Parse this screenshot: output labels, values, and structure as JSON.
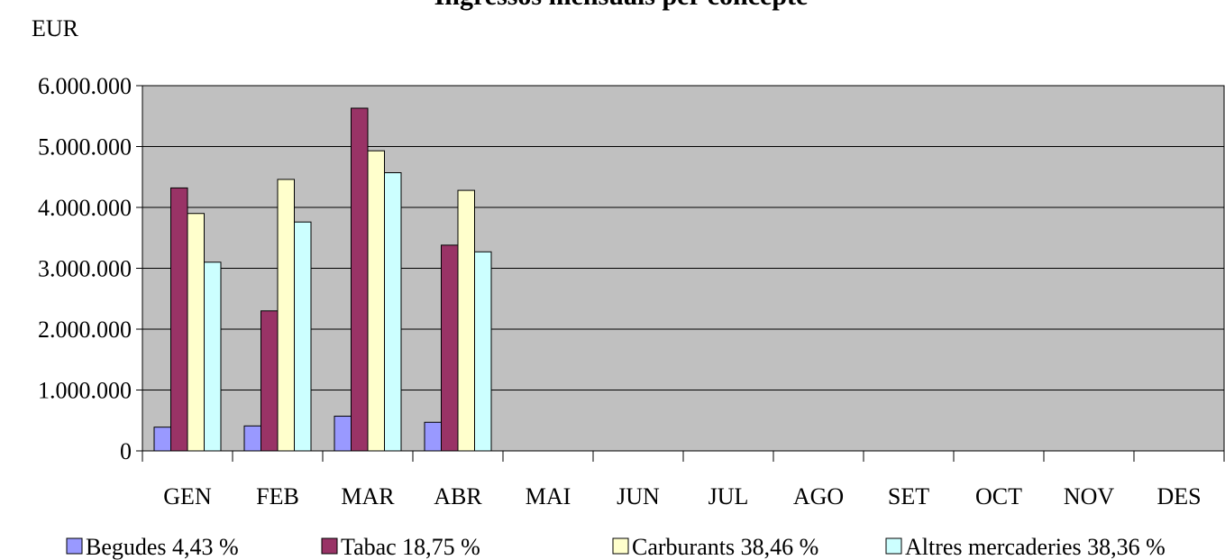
{
  "chart_data": {
    "type": "bar",
    "title": "Ingressos mensuals per concepte",
    "ylabel": "EUR",
    "xlabel": "",
    "ylim": [
      0,
      6000000
    ],
    "yticks": [
      0,
      1000000,
      2000000,
      3000000,
      4000000,
      5000000,
      6000000
    ],
    "ytick_labels": [
      "0",
      "1.000.000",
      "2.000.000",
      "3.000.000",
      "4.000.000",
      "5.000.000",
      "6.000.000"
    ],
    "categories": [
      "GEN",
      "FEB",
      "MAR",
      "ABR",
      "MAI",
      "JUN",
      "JUL",
      "AGO",
      "SET",
      "OCT",
      "NOV",
      "DES"
    ],
    "series": [
      {
        "name": "Begudes 4,43 %",
        "color": "#9999ff",
        "values": [
          390000,
          410000,
          570000,
          470000,
          null,
          null,
          null,
          null,
          null,
          null,
          null,
          null
        ]
      },
      {
        "name": "Tabac 18,75 %",
        "color": "#993366",
        "values": [
          4320000,
          2300000,
          5630000,
          3380000,
          null,
          null,
          null,
          null,
          null,
          null,
          null,
          null
        ]
      },
      {
        "name": "Carburants 38,46 %",
        "color": "#ffffcc",
        "values": [
          3900000,
          4460000,
          4930000,
          4280000,
          null,
          null,
          null,
          null,
          null,
          null,
          null,
          null
        ]
      },
      {
        "name": "Altres mercaderies 38,36 %",
        "color": "#ccffff",
        "values": [
          3100000,
          3760000,
          4570000,
          3270000,
          null,
          null,
          null,
          null,
          null,
          null,
          null,
          null
        ]
      }
    ],
    "plot_background": "#c0c0c0",
    "grid": true,
    "legend_position": "bottom"
  }
}
